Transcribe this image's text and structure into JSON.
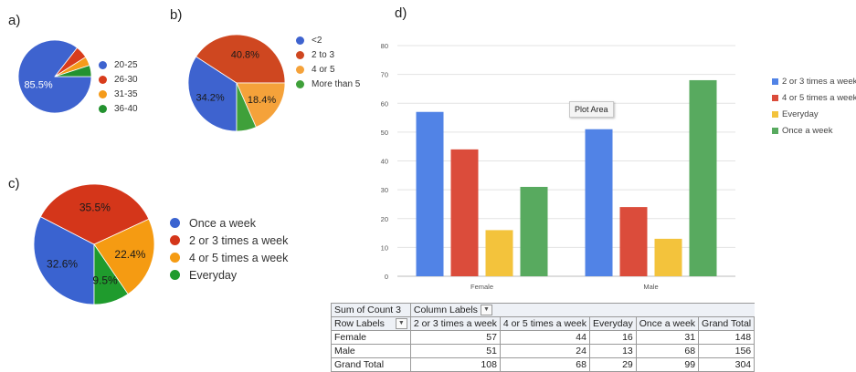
{
  "panels": {
    "a": "a)",
    "b": "b)",
    "c": "c)",
    "d": "d)"
  },
  "chart_data": [
    {
      "type": "pie",
      "id": "a",
      "categories": [
        "20-25",
        "26-30",
        "31-35",
        "36-40"
      ],
      "values": [
        85.5,
        5.5,
        4.0,
        5.0
      ],
      "colors": [
        "#3e63cf",
        "#d83c1c",
        "#f59b1a",
        "#23922f"
      ],
      "slice_labels": [
        "85.5%",
        "",
        "",
        ""
      ],
      "start_angle": 0
    },
    {
      "type": "pie",
      "id": "b",
      "categories": [
        "<2",
        "2 to 3",
        "4 or 5",
        "More than 5"
      ],
      "values": [
        34.2,
        40.8,
        18.4,
        6.6
      ],
      "colors": [
        "#3e63cf",
        "#cf4720",
        "#f5a23a",
        "#3fa03a"
      ],
      "slice_labels": [
        "34.2%",
        "40.8%",
        "18.4%",
        ""
      ],
      "start_angle": 90
    },
    {
      "type": "pie",
      "id": "c",
      "categories": [
        "Once a week",
        "2 or 3 times a week",
        "4 or 5 times a week",
        "Everyday"
      ],
      "values": [
        32.6,
        35.5,
        22.4,
        9.5
      ],
      "colors": [
        "#3a63d0",
        "#d4361a",
        "#f59b12",
        "#1f9b2d"
      ],
      "slice_labels": [
        "32.6%",
        "35.5%",
        "22.4%",
        "9.5%"
      ],
      "start_angle": 90
    },
    {
      "type": "bar",
      "id": "d",
      "categories": [
        "Female",
        "Male"
      ],
      "series": [
        {
          "name": "2 or 3 times a week",
          "values": [
            57,
            51
          ],
          "color": "#5183e6"
        },
        {
          "name": "4 or 5 times a week",
          "values": [
            44,
            24
          ],
          "color": "#db4c3b"
        },
        {
          "name": "Everyday",
          "values": [
            16,
            13
          ],
          "color": "#f3c33c"
        },
        {
          "name": "Once a week",
          "values": [
            31,
            68
          ],
          "color": "#58aa5f"
        }
      ],
      "ylim": [
        0,
        80
      ],
      "yticks": [
        0,
        10,
        20,
        30,
        40,
        50,
        60,
        70,
        80
      ],
      "grid": true,
      "legend": "right",
      "tooltip": "Plot Area"
    }
  ],
  "pivot": {
    "corner": "Sum of Count 3",
    "column_labels": "Column Labels",
    "row_labels": "Row Labels",
    "headers": [
      "2 or 3 times a week",
      "4 or 5 times a week",
      "Everyday",
      "Once a week",
      "Grand Total"
    ],
    "rows": [
      {
        "label": "Female",
        "values": [
          "57",
          "44",
          "16",
          "31",
          "148"
        ]
      },
      {
        "label": "Male",
        "values": [
          "51",
          "24",
          "13",
          "68",
          "156"
        ]
      },
      {
        "label": "Grand Total",
        "values": [
          "108",
          "68",
          "29",
          "99",
          "304"
        ]
      }
    ]
  }
}
